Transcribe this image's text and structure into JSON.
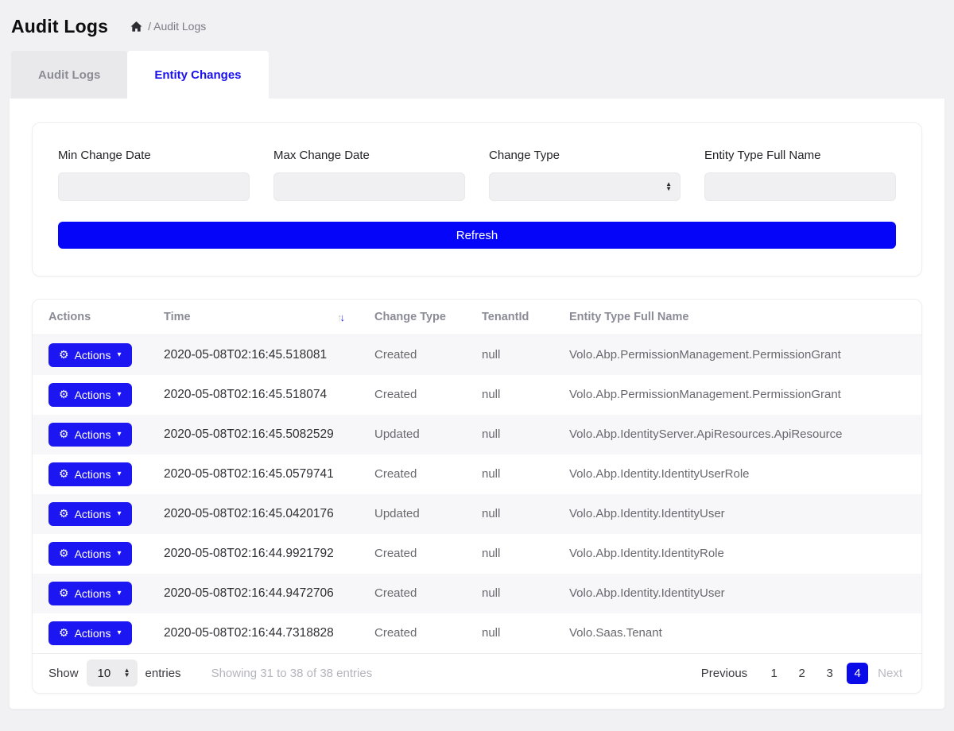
{
  "page": {
    "title": "Audit Logs",
    "breadcrumb": {
      "icon": "home-icon",
      "path": "/ Audit Logs"
    }
  },
  "tabs": [
    {
      "label": "Audit Logs",
      "active": false
    },
    {
      "label": "Entity Changes",
      "active": true
    }
  ],
  "filters": {
    "fields": [
      {
        "label": "Min Change Date",
        "type": "input",
        "value": "",
        "placeholder": ""
      },
      {
        "label": "Max Change Date",
        "type": "input",
        "value": "",
        "placeholder": ""
      },
      {
        "label": "Change Type",
        "type": "select",
        "value": ""
      },
      {
        "label": "Entity Type Full Name",
        "type": "input",
        "value": "",
        "placeholder": ""
      }
    ],
    "refresh_label": "Refresh"
  },
  "table": {
    "columns": [
      "Actions",
      "Time",
      "Change Type",
      "TenantId",
      "Entity Type Full Name"
    ],
    "sort": {
      "column": "Time",
      "direction": "desc"
    },
    "actions_label": "Actions",
    "rows": [
      {
        "time": "2020-05-08T02:16:45.518081",
        "change_type": "Created",
        "tenant_id": "null",
        "entity": "Volo.Abp.PermissionManagement.PermissionGrant"
      },
      {
        "time": "2020-05-08T02:16:45.518074",
        "change_type": "Created",
        "tenant_id": "null",
        "entity": "Volo.Abp.PermissionManagement.PermissionGrant"
      },
      {
        "time": "2020-05-08T02:16:45.5082529",
        "change_type": "Updated",
        "tenant_id": "null",
        "entity": "Volo.Abp.IdentityServer.ApiResources.ApiResource"
      },
      {
        "time": "2020-05-08T02:16:45.0579741",
        "change_type": "Created",
        "tenant_id": "null",
        "entity": "Volo.Abp.Identity.IdentityUserRole"
      },
      {
        "time": "2020-05-08T02:16:45.0420176",
        "change_type": "Updated",
        "tenant_id": "null",
        "entity": "Volo.Abp.Identity.IdentityUser"
      },
      {
        "time": "2020-05-08T02:16:44.9921792",
        "change_type": "Created",
        "tenant_id": "null",
        "entity": "Volo.Abp.Identity.IdentityRole"
      },
      {
        "time": "2020-05-08T02:16:44.9472706",
        "change_type": "Created",
        "tenant_id": "null",
        "entity": "Volo.Abp.Identity.IdentityUser"
      },
      {
        "time": "2020-05-08T02:16:44.7318828",
        "change_type": "Created",
        "tenant_id": "null",
        "entity": "Volo.Saas.Tenant"
      }
    ]
  },
  "footer": {
    "show_label": "Show",
    "page_size": "10",
    "entries_label": "entries",
    "showing_text": "Showing 31 to 38 of 38 entries",
    "pagination": {
      "previous": "Previous",
      "pages": [
        "1",
        "2",
        "3",
        "4"
      ],
      "active_page": "4",
      "next": "Next",
      "next_disabled": true
    }
  },
  "colors": {
    "accent_blue": "#0505fa",
    "actions_button_blue": "#1b16f2",
    "active_page_blue": "#0b0bea",
    "active_tab_text": "#1a10f0",
    "page_background": "#f1f1f4",
    "row_stripe": "#f7f7f9",
    "muted_text": "#8b8b97"
  }
}
